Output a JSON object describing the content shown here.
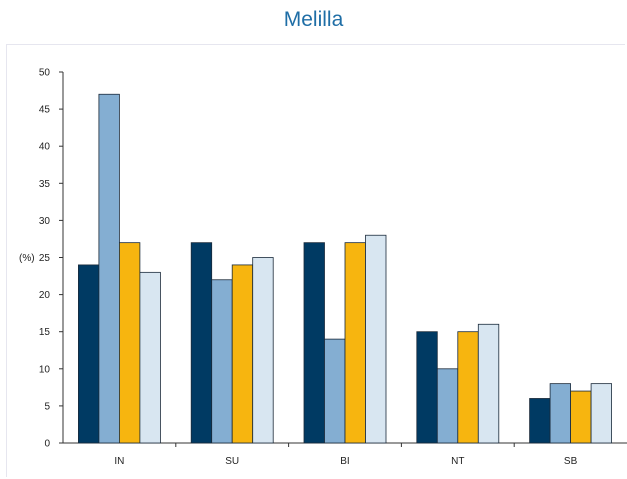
{
  "chart_data": {
    "type": "bar",
    "title": "Melilla",
    "ylabel": "(%)",
    "xlabel": "",
    "categories": [
      "IN",
      "SU",
      "BI",
      "NT",
      "SB"
    ],
    "series": [
      {
        "values": [
          24,
          27,
          27,
          15,
          6
        ],
        "color": "#003a63"
      },
      {
        "values": [
          47,
          22,
          14,
          10,
          8
        ],
        "color": "#84aed2"
      },
      {
        "values": [
          27,
          24,
          27,
          15,
          7
        ],
        "color": "#f7b50f"
      },
      {
        "values": [
          23,
          25,
          28,
          16,
          8
        ],
        "color": "#d8e6f1"
      }
    ],
    "ylim": [
      0,
      50
    ],
    "yticks": [
      0,
      5,
      10,
      15,
      20,
      25,
      30,
      35,
      40,
      45,
      50
    ],
    "grid": false,
    "legend": "none"
  }
}
